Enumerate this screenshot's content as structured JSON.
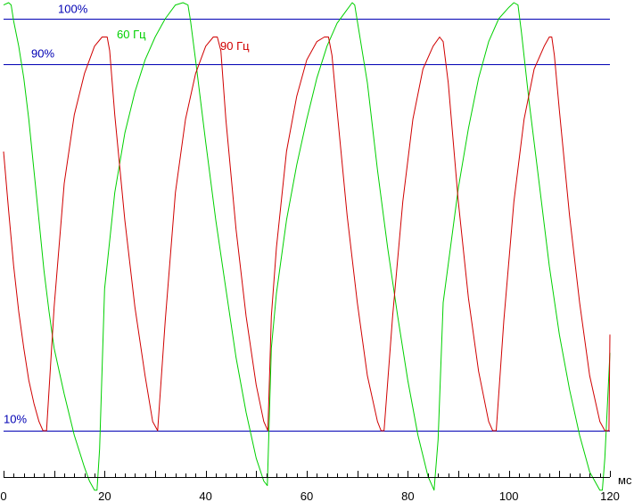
{
  "chart_data": {
    "type": "line",
    "title": "",
    "xlabel": "мс",
    "ylabel": "",
    "xlim": [
      0,
      120
    ],
    "ylim": [
      -10,
      106
    ],
    "x_ticks": [
      0,
      20,
      40,
      60,
      80,
      100,
      120
    ],
    "x_tick_labels": [
      "0",
      "20",
      "40",
      "60",
      "80",
      "100",
      "120"
    ],
    "reference_lines": [
      {
        "label": "100%",
        "value": 100
      },
      {
        "label": "90%",
        "value": 90
      },
      {
        "label": "10%",
        "value": 10
      }
    ],
    "colors": {
      "reference": "#0000b4",
      "series_60": "#00d000",
      "series_90": "#d00000",
      "axis": "#000000"
    },
    "series": [
      {
        "name": "60 Гц",
        "color": "#00d000",
        "x": [
          0,
          1,
          1.5,
          2,
          3,
          4,
          5,
          6,
          7,
          8,
          9,
          10,
          12,
          14,
          16,
          17,
          18,
          18.5,
          19,
          20,
          22,
          24,
          26,
          28,
          30,
          32,
          34,
          35.5,
          36.5,
          37,
          38,
          40,
          42,
          44,
          46,
          48,
          50,
          51.5,
          52.2,
          53,
          54,
          56,
          58,
          60,
          62,
          64,
          66,
          68,
          69,
          69.5,
          70,
          72,
          74,
          76,
          78,
          80,
          82,
          84,
          85.2,
          86,
          87,
          90,
          92,
          94,
          96,
          98,
          100,
          101,
          101.8,
          102.5,
          104,
          106,
          108,
          110,
          112,
          114,
          116,
          118,
          118.5,
          119,
          120
        ],
        "y": [
          103,
          103.5,
          103,
          99.5,
          94,
          87,
          78,
          67,
          56,
          45,
          36,
          28,
          18,
          9,
          2,
          -1,
          -3,
          -3,
          6,
          41,
          62,
          75,
          84,
          91,
          96,
          100,
          103,
          103.5,
          103,
          99.5,
          91,
          73,
          56,
          41,
          26,
          14,
          4,
          -1,
          -2,
          28,
          40,
          56,
          68,
          78,
          87,
          94,
          99,
          102,
          103.5,
          103,
          99.5,
          86,
          67,
          50,
          35,
          21,
          9,
          0,
          -3,
          8,
          38,
          63,
          76,
          87,
          95,
          100,
          102.5,
          103.5,
          103,
          97,
          82,
          64,
          46,
          31,
          19,
          9,
          1,
          -3,
          -3,
          4,
          27
        ]
      },
      {
        "name": "90 Гц",
        "color": "#d00000",
        "x": [
          0,
          1,
          2,
          3,
          4,
          5,
          6,
          7,
          7.8,
          8.5,
          10,
          12,
          14,
          16,
          18,
          19.5,
          20.5,
          21,
          22,
          24,
          26,
          28,
          29.5,
          30.5,
          32,
          34,
          36,
          38,
          40,
          41.5,
          42.3,
          43,
          44,
          46,
          48,
          50,
          51.5,
          52.3,
          53,
          54,
          56,
          58,
          60,
          62,
          63.5,
          64.3,
          65,
          66,
          68,
          70,
          72,
          74,
          74.7,
          75.3,
          77,
          79,
          81,
          83,
          85,
          86.3,
          87,
          88,
          90,
          92,
          94,
          96,
          96.8,
          97.5,
          99,
          101,
          103,
          105,
          107,
          108,
          108.5,
          109,
          110,
          112,
          114,
          116,
          118,
          119,
          119.8,
          120
        ],
        "y": [
          71,
          58,
          46,
          36,
          28,
          21,
          16,
          12,
          10,
          10,
          37,
          64,
          79,
          88,
          94,
          96,
          96,
          93,
          79,
          56,
          37,
          22,
          12,
          10,
          34,
          62,
          78,
          88,
          94,
          96,
          96,
          93,
          78,
          54,
          35,
          20,
          12,
          10,
          35,
          50,
          71,
          83,
          91,
          95,
          96,
          96,
          92,
          80,
          57,
          38,
          22,
          12,
          10,
          10,
          35,
          60,
          78,
          89,
          94,
          96,
          95,
          86,
          60,
          39,
          23,
          12,
          10,
          10,
          34,
          60,
          78,
          89,
          94,
          96,
          96,
          92,
          80,
          57,
          38,
          22,
          12,
          10,
          10,
          31
        ]
      }
    ]
  }
}
